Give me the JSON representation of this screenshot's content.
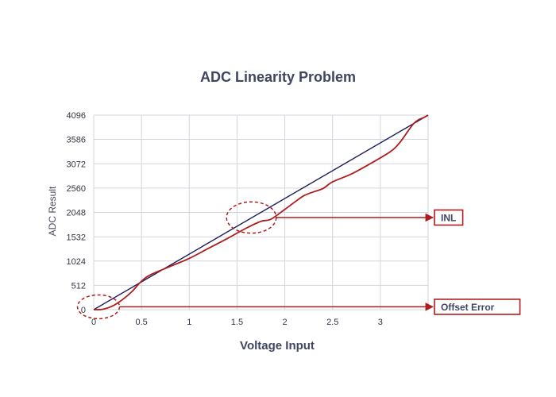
{
  "chart_data": {
    "type": "line",
    "title": "ADC Linearity Problem",
    "xlabel": "Voltage Input",
    "ylabel": "ADC Result",
    "xlim": [
      0,
      3.5
    ],
    "ylim": [
      0,
      4096
    ],
    "x_ticks": [
      0,
      0.5,
      1,
      1.5,
      2,
      2.5,
      3
    ],
    "x_tick_labels": [
      "0",
      "0.5",
      "1",
      "1.5",
      "2",
      "2.5",
      "3"
    ],
    "y_ticks": [
      0,
      512,
      1024,
      1532,
      2048,
      2560,
      3072,
      3586,
      4096
    ],
    "y_tick_labels": [
      "0",
      "512",
      "1024",
      "1532",
      "2048",
      "2560",
      "3072",
      "3586",
      "4096"
    ],
    "grid": true,
    "series": [
      {
        "color": "#1a1f5c",
        "x": [
          0,
          3.5
        ],
        "y": [
          0,
          4096
        ]
      },
      {
        "color": "#b01c1c",
        "x": [
          0,
          0.1,
          0.2,
          0.3,
          0.4,
          0.5,
          0.6,
          0.8,
          1.0,
          1.2,
          1.4,
          1.6,
          1.75,
          1.85,
          2.0,
          2.1,
          2.2,
          2.3,
          2.4,
          2.5,
          2.7,
          2.9,
          3.1,
          3.2,
          3.3,
          3.35,
          3.4,
          3.45,
          3.5
        ],
        "y": [
          0,
          10,
          80,
          210,
          380,
          600,
          740,
          910,
          1080,
          1290,
          1500,
          1720,
          1860,
          1900,
          2110,
          2260,
          2400,
          2480,
          2550,
          2690,
          2860,
          3080,
          3320,
          3510,
          3790,
          3920,
          4000,
          4040,
          4096
        ]
      }
    ],
    "annotations": [
      {
        "label": "INL",
        "center": [
          1.65,
          1940
        ],
        "radius": [
          0.26,
          330
        ],
        "box_color": "#b01c1c"
      },
      {
        "label": "Offset  Error",
        "center": [
          0.05,
          60
        ],
        "radius": [
          0.22,
          250
        ],
        "box_color": "#b01c1c"
      }
    ]
  }
}
